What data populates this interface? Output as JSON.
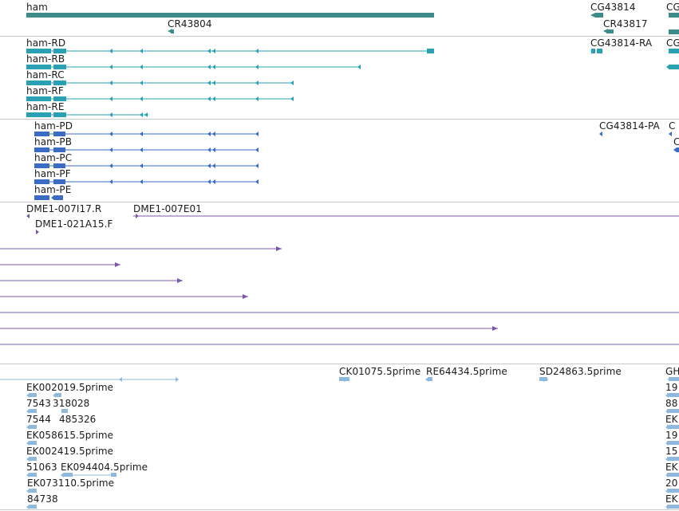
{
  "colors": {
    "gene": "#3d8c8a",
    "flybase_transcript": "#2aa0b3",
    "protein": "#3a6cc4",
    "clone_end": "#7b58a8",
    "est": "#8fb8dd",
    "separator": "#c8c8c8"
  },
  "gene_track": {
    "labels": [
      {
        "name": "ham"
      },
      {
        "name": "CR43804"
      },
      {
        "name": "CG43814"
      },
      {
        "name": "CR43817"
      },
      {
        "name": "CG"
      }
    ]
  },
  "transcript_track": {
    "labels": [
      {
        "name": "ham-RD"
      },
      {
        "name": "ham-RB"
      },
      {
        "name": "ham-RC"
      },
      {
        "name": "ham-RF"
      },
      {
        "name": "ham-RE"
      },
      {
        "name": "CG43814-RA"
      },
      {
        "name": "CG"
      }
    ]
  },
  "protein_track": {
    "labels": [
      {
        "name": "ham-PD"
      },
      {
        "name": "ham-PB"
      },
      {
        "name": "ham-PC"
      },
      {
        "name": "ham-PF"
      },
      {
        "name": "ham-PE"
      },
      {
        "name": "CG43814-PA"
      },
      {
        "name": "C"
      },
      {
        "name": "C"
      }
    ]
  },
  "clone_track": {
    "labels": [
      {
        "name": "DME1-007I17.R"
      },
      {
        "name": "DME1-007E01"
      },
      {
        "name": "DME1-021A15.F"
      }
    ]
  },
  "est_track": {
    "labels": [
      {
        "name": "CK01075.5prime"
      },
      {
        "name": "RE64434.5prime"
      },
      {
        "name": "SD24863.5prime"
      },
      {
        "name": "GH"
      },
      {
        "name": "EK002019.5prime"
      },
      {
        "name": "19"
      },
      {
        "name": "7543"
      },
      {
        "name": "318028"
      },
      {
        "name": "88"
      },
      {
        "name": "7544"
      },
      {
        "name": "485326"
      },
      {
        "name": "EK"
      },
      {
        "name": "EK058615.5prime"
      },
      {
        "name": "19"
      },
      {
        "name": "EK002419.5prime"
      },
      {
        "name": "15"
      },
      {
        "name": "51063"
      },
      {
        "name": "EK094404.5prime"
      },
      {
        "name": "EK"
      },
      {
        "name": "EK073110.5prime"
      },
      {
        "name": "20"
      },
      {
        "name": "84738"
      },
      {
        "name": "EK"
      }
    ]
  }
}
